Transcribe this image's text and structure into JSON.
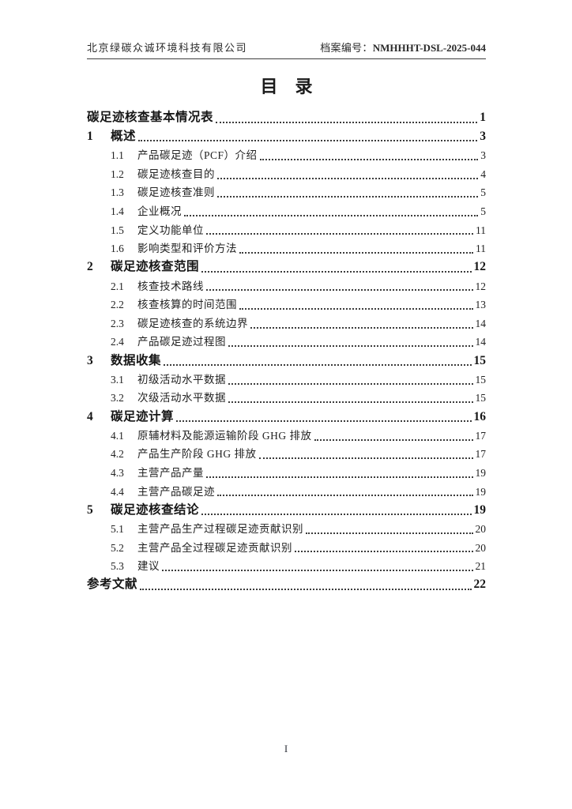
{
  "header": {
    "company": "北京绿碳众诚环境科技有限公司",
    "archive_label": "档案编号：",
    "archive_code": "NMHHHT-DSL-2025-044"
  },
  "title": "目　录",
  "toc": {
    "entries": [
      {
        "num": "",
        "label": "碳足迹核查基本情况表",
        "page": "1",
        "level": 0
      },
      {
        "num": "1",
        "label": "概述",
        "page": "3",
        "level": 1
      },
      {
        "num": "1.1",
        "label": "产品碳足迹（PCF）介绍",
        "page": "3",
        "level": 2
      },
      {
        "num": "1.2",
        "label": "碳足迹核查目的",
        "page": "4",
        "level": 2
      },
      {
        "num": "1.3",
        "label": "碳足迹核查准则",
        "page": "5",
        "level": 2
      },
      {
        "num": "1.4",
        "label": "企业概况",
        "page": "5",
        "level": 2
      },
      {
        "num": "1.5",
        "label": "定义功能单位",
        "page": "11",
        "level": 2
      },
      {
        "num": "1.6",
        "label": "影响类型和评价方法",
        "page": "11",
        "level": 2
      },
      {
        "num": "2",
        "label": "碳足迹核查范围",
        "page": "12",
        "level": 1
      },
      {
        "num": "2.1",
        "label": "核查技术路线",
        "page": "12",
        "level": 2
      },
      {
        "num": "2.2",
        "label": "核查核算的时间范围",
        "page": "13",
        "level": 2
      },
      {
        "num": "2.3",
        "label": "碳足迹核查的系统边界",
        "page": "14",
        "level": 2
      },
      {
        "num": "2.4",
        "label": "产品碳足迹过程图",
        "page": "14",
        "level": 2
      },
      {
        "num": "3",
        "label": "数据收集",
        "page": "15",
        "level": 1
      },
      {
        "num": "3.1",
        "label": "初级活动水平数据",
        "page": "15",
        "level": 2
      },
      {
        "num": "3.2",
        "label": "次级活动水平数据",
        "page": "15",
        "level": 2
      },
      {
        "num": "4",
        "label": "碳足迹计算",
        "page": "16",
        "level": 1
      },
      {
        "num": "4.1",
        "label": "原辅材料及能源运输阶段 GHG 排放",
        "page": "17",
        "level": 2
      },
      {
        "num": "4.2",
        "label": "产品生产阶段 GHG 排放",
        "page": "17",
        "level": 2
      },
      {
        "num": "4.3",
        "label": "主营产品产量",
        "page": "19",
        "level": 2
      },
      {
        "num": "4.4",
        "label": "主营产品碳足迹",
        "page": "19",
        "level": 2
      },
      {
        "num": "5",
        "label": "碳足迹核查结论",
        "page": "19",
        "level": 1
      },
      {
        "num": "5.1",
        "label": "主营产品生产过程碳足迹贡献识别",
        "page": "20",
        "level": 2
      },
      {
        "num": "5.2",
        "label": "主营产品全过程碳足迹贡献识别",
        "page": "20",
        "level": 2
      },
      {
        "num": "5.3",
        "label": "建议",
        "page": "21",
        "level": 2
      },
      {
        "num": "",
        "label": "参考文献",
        "page": "22",
        "level": 0
      }
    ]
  },
  "footer": {
    "page_number": "I"
  }
}
